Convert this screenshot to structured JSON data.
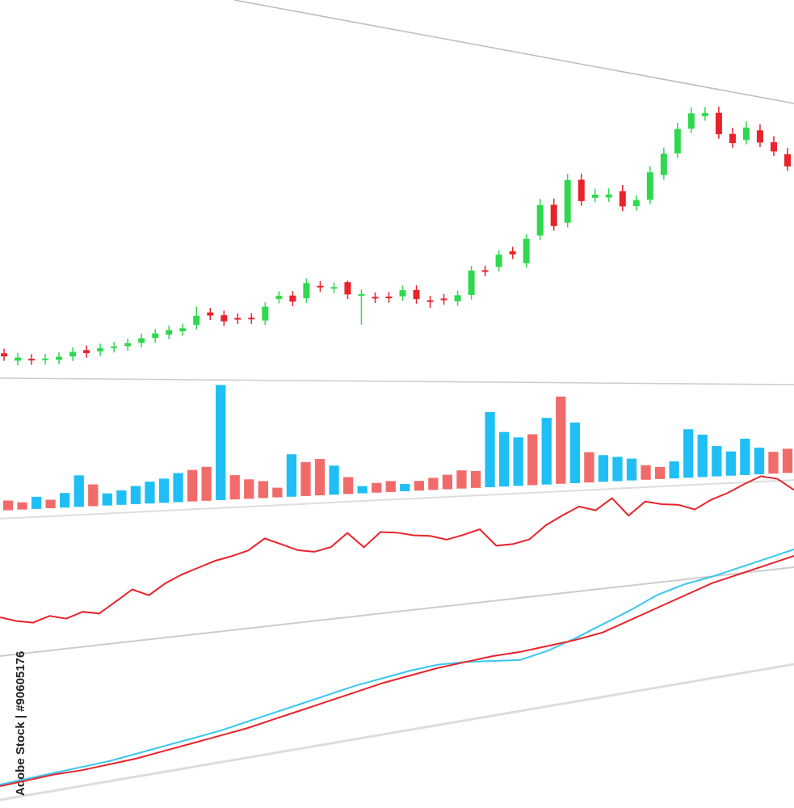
{
  "watermark": "Adobe Stock | #90605176",
  "chart_data": [
    {
      "type": "candlestick",
      "open": [
        6,
        3.5,
        4,
        3.5,
        3.5,
        4.5,
        6.5,
        6,
        7,
        7.5,
        8.5,
        10,
        11,
        12,
        14,
        18,
        17,
        16,
        16,
        15,
        22,
        23,
        22,
        26,
        25,
        27,
        22.5,
        22,
        22,
        22,
        24,
        20.5,
        21,
        20,
        22,
        30,
        31,
        36,
        32,
        41,
        51,
        45,
        59,
        53,
        53,
        55,
        50,
        52,
        60,
        67,
        75,
        79,
        80,
        73,
        71,
        74,
        70,
        66
      ],
      "high": [
        7.5,
        6,
        5.5,
        5.5,
        6,
        7.5,
        8,
        8.5,
        9,
        10,
        11.5,
        13,
        14,
        14.5,
        20,
        19.5,
        18.5,
        17.5,
        17.5,
        21,
        24.5,
        24.5,
        28.5,
        27.5,
        27,
        27.5,
        24.5,
        23.5,
        23.5,
        25.5,
        25.5,
        22,
        22.5,
        23.5,
        31.5,
        31.5,
        36.5,
        37.5,
        41.5,
        53,
        53,
        61,
        61,
        56,
        56,
        57,
        53.5,
        63,
        69,
        77,
        82,
        82,
        82,
        75,
        77,
        76,
        72,
        68
      ],
      "low": [
        3.5,
        2,
        2,
        2,
        2,
        3,
        4,
        4.5,
        5.5,
        6,
        7,
        8.5,
        9.5,
        10.5,
        12.5,
        15.5,
        13.5,
        14,
        14,
        13.5,
        20.5,
        19.5,
        20.5,
        24,
        23.5,
        21.5,
        13,
        20,
        20,
        20.5,
        19.5,
        18,
        19,
        18.5,
        20.5,
        28,
        29.5,
        33.5,
        30.5,
        39.5,
        42.5,
        43.5,
        50.5,
        51.5,
        51.5,
        48.5,
        48.5,
        50.5,
        58.5,
        65.5,
        73.5,
        77.5,
        71.5,
        68.5,
        69.5,
        68.5,
        65.5,
        60.5
      ],
      "close": [
        5,
        4.5,
        3.5,
        4,
        4.5,
        6,
        5.5,
        7,
        7.5,
        8.5,
        10,
        11.5,
        12.5,
        13,
        17,
        17,
        15,
        15.5,
        15.5,
        19.5,
        23,
        21,
        27,
        25.5,
        25.5,
        23,
        23,
        21.5,
        21.5,
        24,
        21,
        20,
        20.5,
        22,
        30,
        29.5,
        35,
        35,
        40,
        51,
        44,
        59,
        52,
        54,
        54,
        50,
        52,
        61,
        67,
        75,
        80,
        80,
        73,
        70,
        75,
        70,
        67,
        62
      ],
      "up_color": "#2fd84f",
      "down_color": "#e8232b",
      "ylim": [
        0,
        90
      ]
    },
    {
      "type": "bar",
      "values": [
        8,
        6,
        10,
        7,
        12,
        26,
        18,
        10,
        12,
        15,
        18,
        20,
        24,
        26,
        28,
        95,
        20,
        16,
        14,
        8,
        35,
        28,
        30,
        24,
        14,
        6,
        8,
        9,
        6,
        8,
        10,
        12,
        15,
        14,
        62,
        45,
        40,
        42,
        55,
        72,
        50,
        25,
        22,
        20,
        18,
        12,
        10,
        14,
        40,
        35,
        25,
        20,
        30,
        22,
        18,
        20
      ],
      "colors": [
        "#f26b6b",
        "#f26b6b",
        "#1fbff5",
        "#f26b6b",
        "#1fbff5",
        "#1fbff5",
        "#f26b6b",
        "#1fbff5",
        "#1fbff5",
        "#1fbff5",
        "#1fbff5",
        "#1fbff5",
        "#1fbff5",
        "#f26b6b",
        "#f26b6b",
        "#1fbff5",
        "#f26b6b",
        "#f26b6b",
        "#f26b6b",
        "#f26b6b",
        "#1fbff5",
        "#f26b6b",
        "#f26b6b",
        "#1fbff5",
        "#f26b6b",
        "#1fbff5",
        "#f26b6b",
        "#f26b6b",
        "#1fbff5",
        "#f26b6b",
        "#f26b6b",
        "#f26b6b",
        "#f26b6b",
        "#f26b6b",
        "#1fbff5",
        "#1fbff5",
        "#1fbff5",
        "#f26b6b",
        "#1fbff5",
        "#f26b6b",
        "#1fbff5",
        "#f26b6b",
        "#1fbff5",
        "#1fbff5",
        "#1fbff5",
        "#f26b6b",
        "#f26b6b",
        "#1fbff5",
        "#1fbff5",
        "#1fbff5",
        "#1fbff5",
        "#1fbff5",
        "#1fbff5",
        "#1fbff5",
        "#f26b6b",
        "#f26b6b"
      ],
      "ylim": [
        0,
        100
      ]
    },
    {
      "type": "line",
      "series": [
        {
          "color": "#e8232b",
          "values": [
            20,
            15,
            12,
            17,
            13,
            18,
            15,
            25,
            35,
            28,
            38,
            45,
            50,
            55,
            58,
            62,
            72,
            65,
            58,
            55,
            58,
            70,
            55,
            68,
            66,
            62,
            60,
            55,
            58,
            62,
            45,
            45,
            48,
            60,
            68,
            75,
            70,
            80,
            62,
            74,
            70,
            68,
            62,
            70,
            75,
            82,
            88,
            84,
            72
          ]
        }
      ],
      "ylim": [
        0,
        100
      ]
    },
    {
      "type": "line",
      "series": [
        {
          "color": "#38c6f0",
          "values": [
            2,
            4,
            6,
            8,
            10,
            13,
            16,
            19,
            22,
            26,
            30,
            34,
            38,
            42,
            45,
            48,
            50,
            50,
            49,
            48,
            52,
            58,
            65,
            72,
            80,
            85,
            88,
            92,
            96,
            100
          ]
        },
        {
          "color": "#e8232b",
          "values": [
            1,
            3,
            5,
            6,
            8,
            10,
            13,
            16,
            19,
            22,
            26,
            30,
            34,
            38,
            42,
            45,
            48,
            50,
            52,
            53,
            55,
            57,
            60,
            66,
            72,
            78,
            84,
            88,
            92,
            96
          ]
        }
      ],
      "ylim": [
        0,
        100
      ]
    }
  ]
}
